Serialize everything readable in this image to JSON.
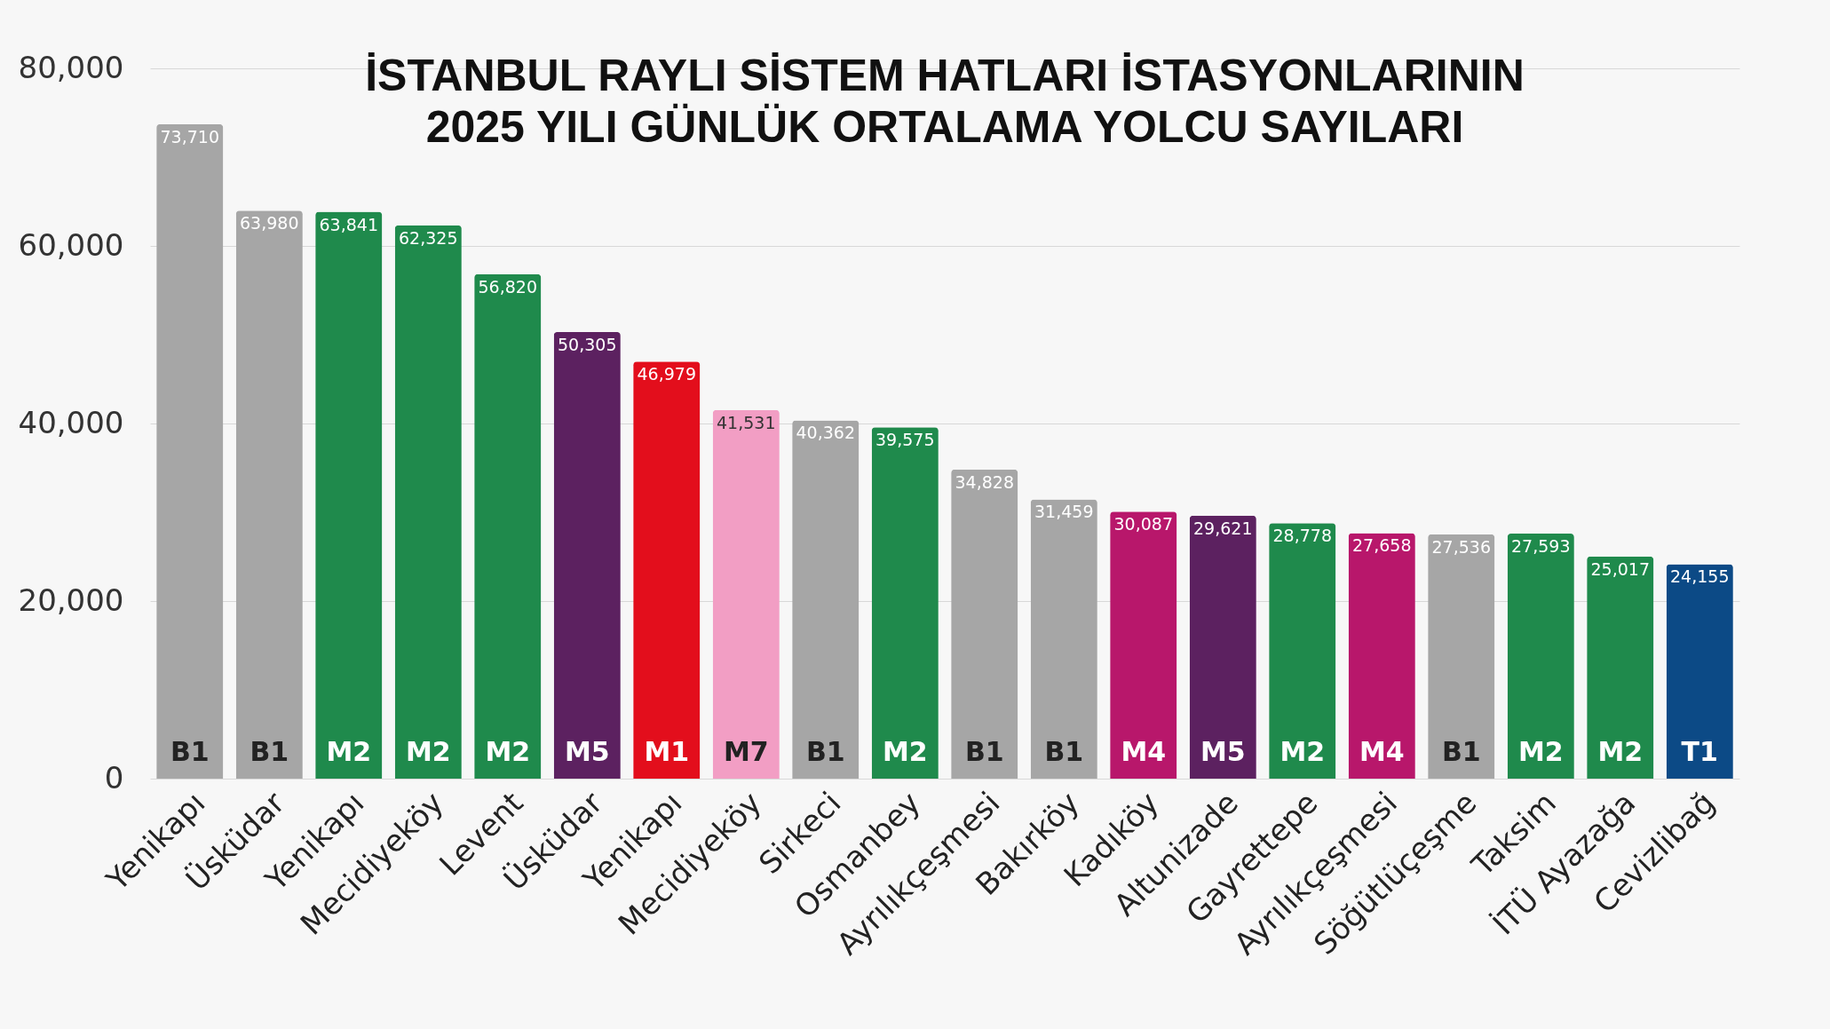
{
  "chart_data": {
    "type": "bar",
    "title": [
      "İSTANBUL RAYLI SİSTEM HATLARI İSTASYONLARININ",
      "2025 YILI GÜNLÜK ORTALAMA YOLCU SAYILARI"
    ],
    "categories": [
      "Yenikapı",
      "Üsküdar",
      "Yenikapı",
      "Mecidiyeköy",
      "Levent",
      "Üsküdar",
      "Yenikapı",
      "Mecidiyeköy",
      "Sirkeci",
      "Osmanbey",
      "Ayrılıkçeşmesi",
      "Bakırköy",
      "Kadıköy",
      "Altunizade",
      "Gayrettepe",
      "Ayrılıkçeşmesi",
      "Söğütlüçeşme",
      "Taksim",
      "İTÜ Ayazağa",
      "Cevizlibağ"
    ],
    "values": [
      73710,
      63980,
      63841,
      62325,
      56820,
      50305,
      46979,
      41531,
      40362,
      39575,
      34828,
      31459,
      30087,
      29621,
      28778,
      27658,
      27536,
      27593,
      25017,
      24155
    ],
    "colors": [
      "#a6a6a6",
      "#a6a6a6",
      "#1f8a4c",
      "#1f8a4c",
      "#1f8a4c",
      "#5c2160",
      "#e30e1c",
      "#f29ec4",
      "#a6a6a6",
      "#1f8a4c",
      "#a6a6a6",
      "#a6a6a6",
      "#b8176b",
      "#5c2160",
      "#1f8a4c",
      "#b8176b",
      "#a6a6a6",
      "#1f8a4c",
      "#1f8a4c",
      "#0c4a86"
    ],
    "annotations": [
      "B1",
      "B1",
      "M2",
      "M2",
      "M2",
      "M5",
      "M1",
      "M7",
      "B1",
      "M2",
      "B1",
      "B1",
      "M4",
      "M5",
      "M2",
      "M4",
      "B1",
      "M2",
      "M2",
      "T1"
    ],
    "ylim": [
      0,
      80000
    ],
    "yticks": [
      {
        "value": 0,
        "label": "0"
      },
      {
        "value": 20000,
        "label": "20,000"
      },
      {
        "value": 40000,
        "label": "40,000"
      },
      {
        "value": 60000,
        "label": "60,000"
      },
      {
        "value": 80000,
        "label": "80,000"
      }
    ],
    "value_labels": [
      "73,710",
      "63,980",
      "63,841",
      "62,325",
      "56,820",
      "50,305",
      "46,979",
      "41,531",
      "40,362",
      "39,575",
      "34,828",
      "31,459",
      "30,087",
      "29,621",
      "28,778",
      "27,658",
      "27,536",
      "27,593",
      "25,017",
      "24,155"
    ],
    "grid": "y"
  }
}
